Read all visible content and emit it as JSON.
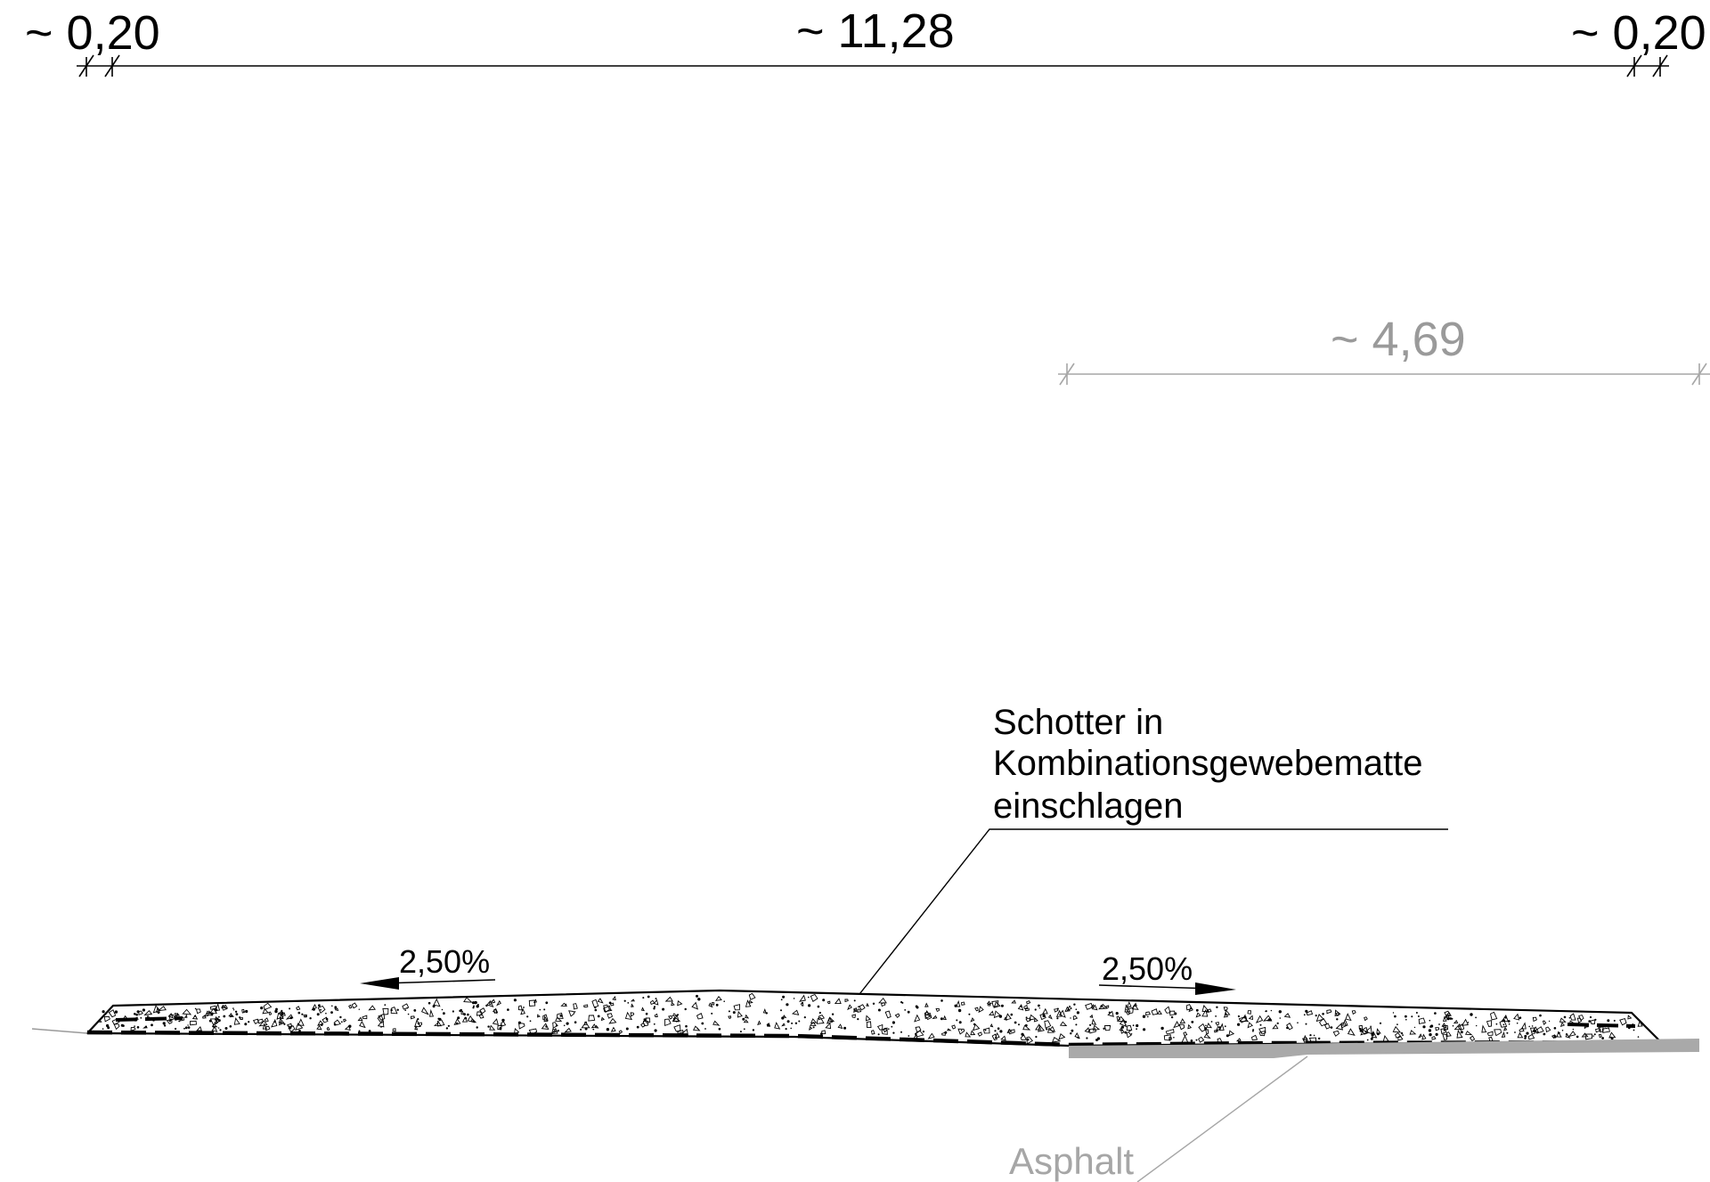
{
  "dimensions": {
    "left_edge": "~ 0,20",
    "span": "~ 11,28",
    "right_edge": "~ 0,20",
    "asphalt_width": "~ 4,69"
  },
  "slopes": {
    "left": "2,50%",
    "right": "2,50%"
  },
  "callouts": {
    "gravel_line1": "Schotter in",
    "gravel_line2": "Kombinationsgewebematte",
    "gravel_line3": "einschlagen",
    "asphalt": "Asphalt"
  },
  "colors": {
    "line": "#000000",
    "grey_annotation": "#9a9a9a",
    "asphalt_fill": "#a9a9a9"
  }
}
